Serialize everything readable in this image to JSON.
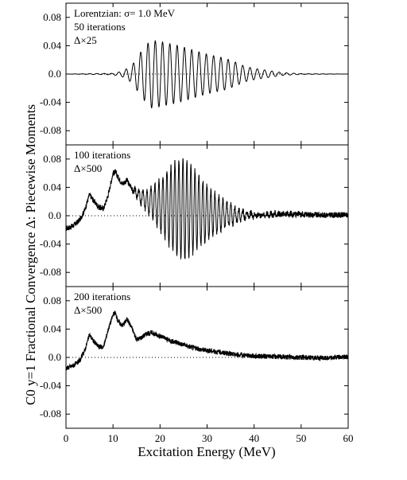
{
  "chart_data": {
    "type": "line",
    "xlabel": "Excitation Energy (MeV)",
    "ylabel": "C0 y=1 Fractional Convergence Δ: Piecewise Moments",
    "xlim": [
      0,
      60
    ],
    "xticks": [
      0,
      10,
      20,
      30,
      40,
      50,
      60
    ],
    "xtick_labels": [
      "0",
      "10",
      "20",
      "30",
      "40",
      "50",
      "60"
    ],
    "zero_line": "dotted",
    "panels": [
      {
        "ylim": [
          -0.1,
          0.1
        ],
        "yticks": [
          "0.08",
          "0.04",
          "0.0",
          "-0.04",
          "-0.08"
        ],
        "annotations": [
          "Lorentzian: σ= 1.0 MeV",
          "50 iterations",
          "Δ×25"
        ],
        "series": [
          {
            "kind": "oscillation",
            "envelope": {
              "x": [
                0,
                10,
                12,
                14,
                16,
                18,
                20,
                22,
                24,
                26,
                28,
                30,
                32,
                34,
                36,
                38,
                40,
                42,
                44,
                46,
                50,
                60
              ],
              "y": [
                0,
                0.001,
                0.004,
                0.012,
                0.032,
                0.048,
                0.046,
                0.043,
                0.04,
                0.036,
                0.032,
                0.028,
                0.025,
                0.022,
                0.017,
                0.011,
                0.008,
                0.006,
                0.004,
                0.002,
                0.0005,
                0
              ]
            },
            "period_mev": 1.55,
            "noise": 0
          }
        ]
      },
      {
        "ylim": [
          -0.1,
          0.1
        ],
        "yticks": [
          "0.08",
          "0.04",
          "0.0",
          "-0.04",
          "-0.08"
        ],
        "annotations": [
          "100 iterations",
          "Δ×500"
        ],
        "series": [
          {
            "kind": "oscillation",
            "baseline": {
              "x": [
                0,
                1,
                2,
                3,
                4,
                5,
                6,
                7,
                8,
                9,
                10,
                10.5,
                11,
                12,
                13,
                14,
                16,
                18,
                20,
                22,
                24,
                26,
                28,
                30,
                32,
                34,
                36,
                38,
                40,
                45,
                50,
                55,
                60
              ],
              "y": [
                -0.018,
                -0.016,
                -0.012,
                -0.005,
                0.008,
                0.03,
                0.02,
                0.012,
                0.01,
                0.03,
                0.06,
                0.062,
                0.055,
                0.045,
                0.05,
                0.038,
                0.025,
                0.02,
                0.015,
                0.012,
                0.01,
                0.008,
                0.006,
                0.004,
                0.003,
                0.002,
                0.001,
                0.001,
                0.001,
                0.002,
                0.002,
                0.001,
                0.001
              ]
            },
            "envelope": {
              "x": [
                0,
                13,
                15,
                17,
                19,
                21,
                23,
                25,
                27,
                29,
                31,
                33,
                35,
                37,
                40,
                60
              ],
              "y": [
                0,
                0,
                0.005,
                0.015,
                0.028,
                0.045,
                0.065,
                0.072,
                0.06,
                0.045,
                0.032,
                0.022,
                0.015,
                0.008,
                0.002,
                0
              ]
            },
            "period_mev": 0.85,
            "noise": 0.004
          }
        ]
      },
      {
        "ylim": [
          -0.1,
          0.1
        ],
        "yticks": [
          "0.08",
          "0.04",
          "0.0",
          "-0.04",
          "-0.08"
        ],
        "annotations": [
          "200 iterations",
          "Δ×500"
        ],
        "series": [
          {
            "kind": "noisy",
            "baseline": {
              "x": [
                0,
                1,
                2,
                3,
                4,
                5,
                6,
                7,
                8,
                9,
                10,
                10.5,
                11,
                12,
                13,
                14,
                15,
                16,
                17,
                18,
                19,
                20,
                22,
                24,
                26,
                28,
                30,
                32,
                34,
                36,
                40,
                45,
                50,
                55,
                60
              ],
              "y": [
                -0.015,
                -0.013,
                -0.01,
                -0.004,
                0.01,
                0.032,
                0.022,
                0.015,
                0.015,
                0.04,
                0.06,
                0.063,
                0.052,
                0.045,
                0.054,
                0.042,
                0.025,
                0.028,
                0.033,
                0.035,
                0.033,
                0.03,
                0.024,
                0.02,
                0.016,
                0.012,
                0.01,
                0.008,
                0.006,
                0.004,
                0.002,
                0.001,
                0.0,
                -0.001,
                0.001
              ]
            },
            "noise": 0.0035
          }
        ]
      }
    ]
  }
}
